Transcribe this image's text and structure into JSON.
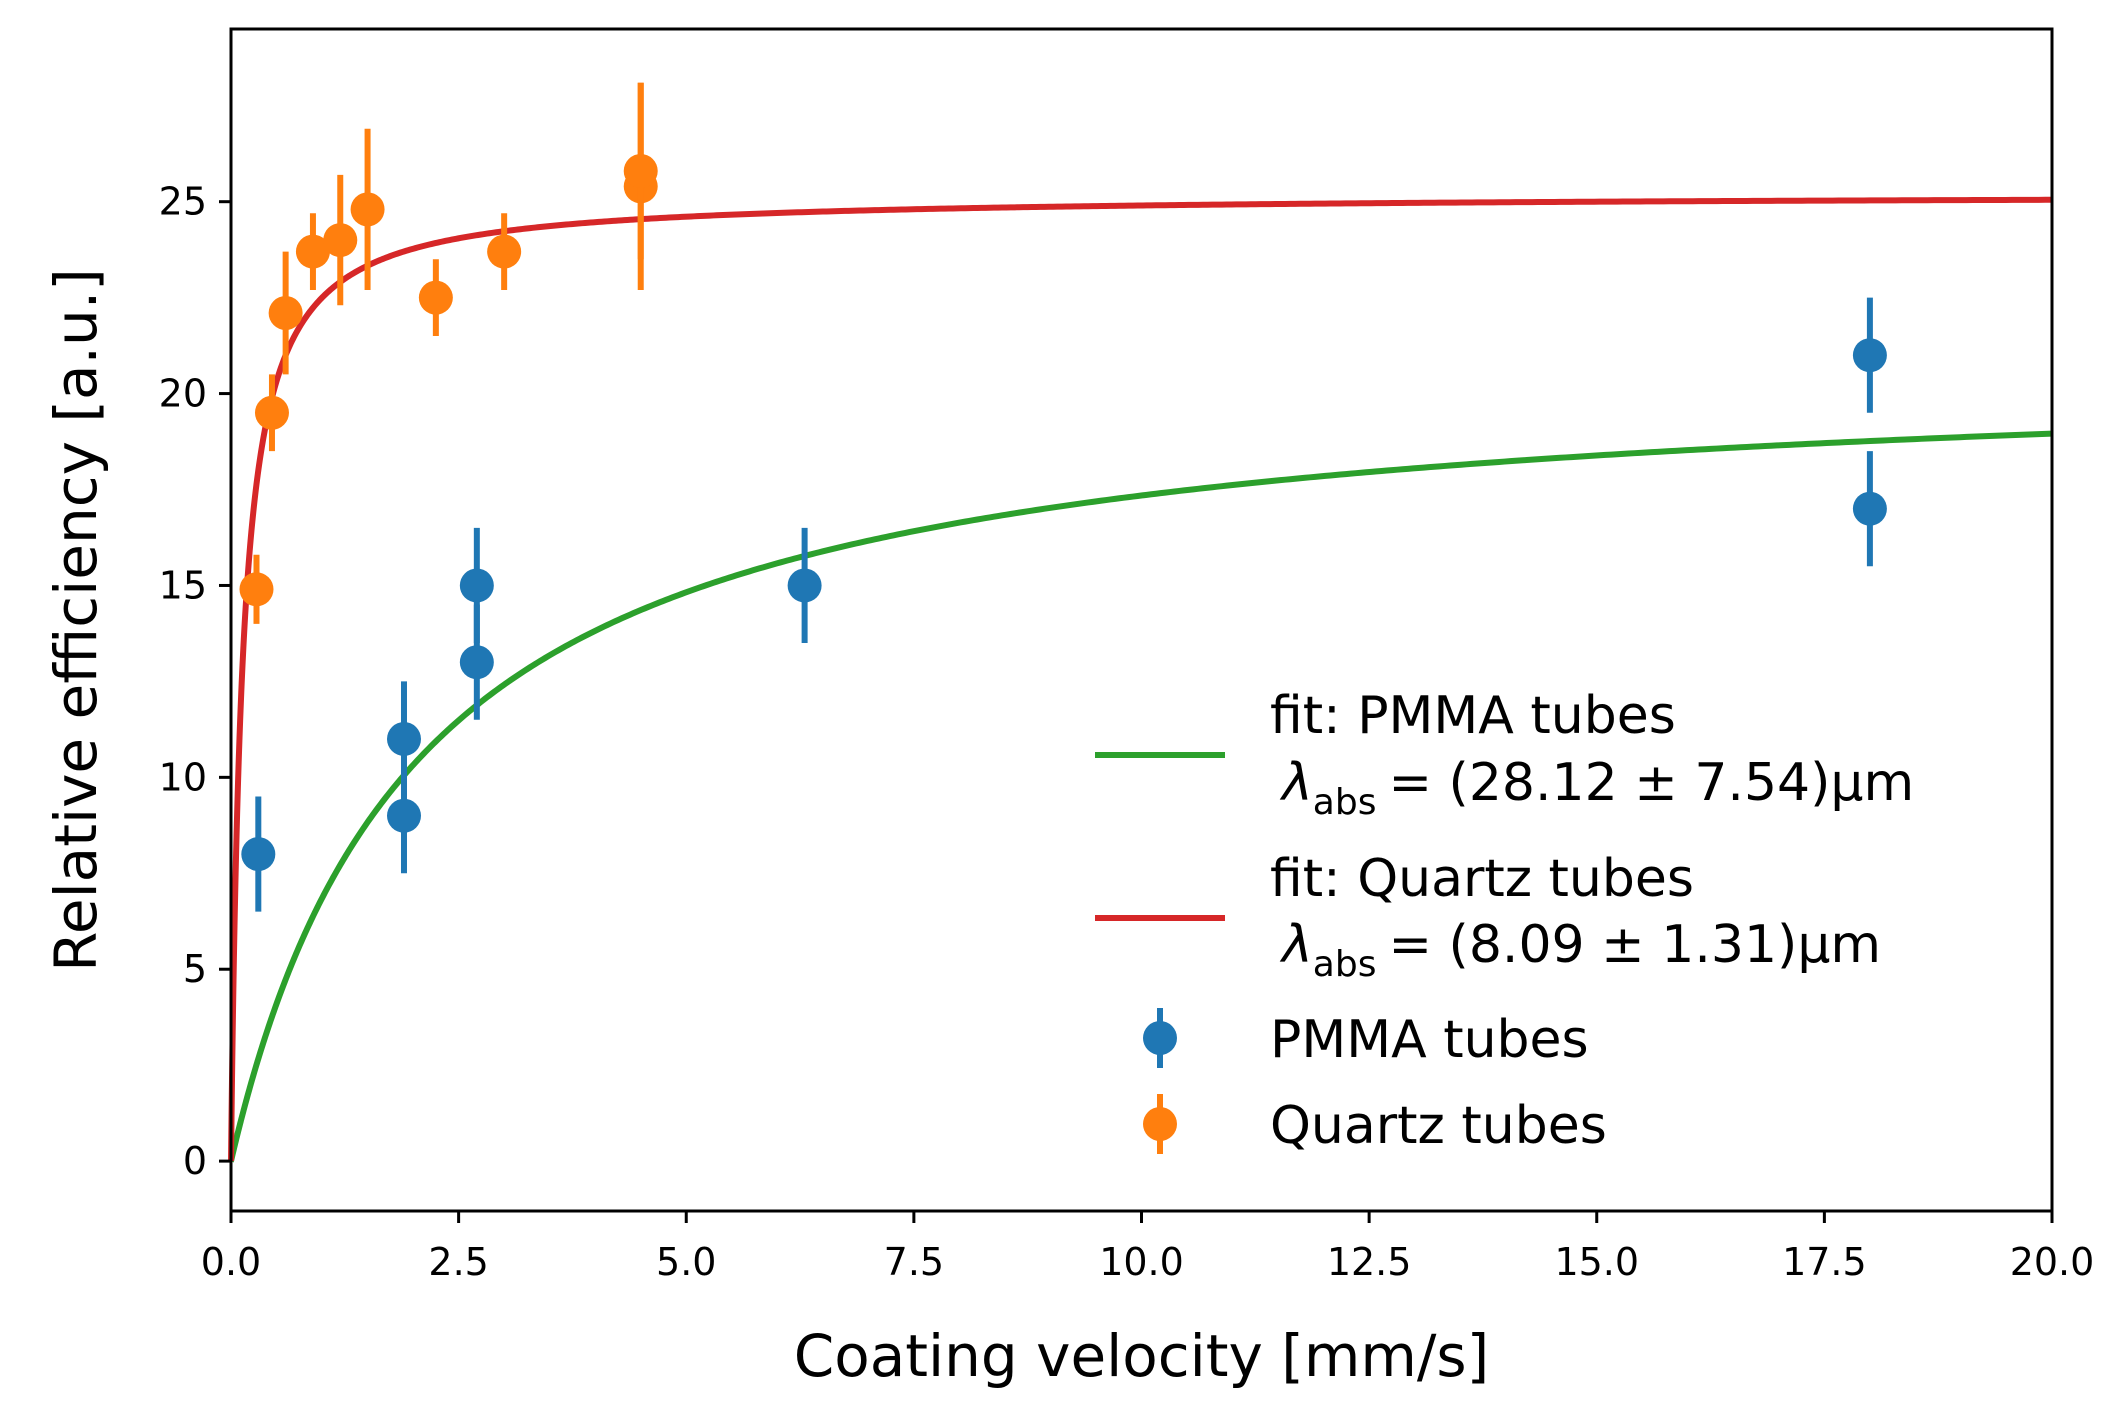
{
  "chart_data": {
    "type": "scatter",
    "xlabel": "Coating velocity [mm/s]",
    "ylabel": "Relative efficiency [a.u.]",
    "xlim": [
      0.0,
      20.0
    ],
    "ylim": [
      -1.3,
      29.5
    ],
    "x_ticks": [
      0.0,
      2.5,
      5.0,
      7.5,
      10.0,
      12.5,
      15.0,
      17.5,
      20.0
    ],
    "x_tick_labels": [
      "0.0",
      "2.5",
      "5.0",
      "7.5",
      "10.0",
      "12.5",
      "15.0",
      "17.5",
      "20.0"
    ],
    "y_ticks": [
      0,
      5,
      10,
      15,
      20,
      25
    ],
    "y_tick_labels": [
      "0",
      "5",
      "10",
      "15",
      "20",
      "25"
    ],
    "grid": false,
    "legend_position": "center-right",
    "series": [
      {
        "name": "PMMA tubes",
        "kind": "errorbar",
        "color": "#1f77b4",
        "points": [
          {
            "x": 0.3,
            "y": 8.0,
            "err": 1.5
          },
          {
            "x": 1.9,
            "y": 11.0,
            "err": 1.5
          },
          {
            "x": 1.9,
            "y": 9.0,
            "err": 1.5
          },
          {
            "x": 2.7,
            "y": 15.0,
            "err": 1.5
          },
          {
            "x": 2.7,
            "y": 13.0,
            "err": 1.5
          },
          {
            "x": 6.3,
            "y": 15.0,
            "err": 1.5
          },
          {
            "x": 18.0,
            "y": 21.0,
            "err": 1.5
          },
          {
            "x": 18.0,
            "y": 17.0,
            "err": 1.5
          }
        ]
      },
      {
        "name": "Quartz tubes",
        "kind": "errorbar",
        "color": "#ff7f0e",
        "points": [
          {
            "x": 0.28,
            "y": 14.9,
            "err": 0.9
          },
          {
            "x": 0.45,
            "y": 19.5,
            "err": 1.0
          },
          {
            "x": 0.6,
            "y": 22.1,
            "err": 1.6
          },
          {
            "x": 0.9,
            "y": 23.7,
            "err": 1.0
          },
          {
            "x": 1.2,
            "y": 24.0,
            "err": 1.7
          },
          {
            "x": 1.5,
            "y": 24.8,
            "err": 2.1
          },
          {
            "x": 2.25,
            "y": 22.5,
            "err": 1.0
          },
          {
            "x": 3.0,
            "y": 23.7,
            "err": 1.0
          },
          {
            "x": 4.5,
            "y": 25.4,
            "err": 2.7
          },
          {
            "x": 4.5,
            "y": 25.8,
            "err": 2.3
          }
        ]
      },
      {
        "name": "fit: PMMA tubes",
        "kind": "fit",
        "color": "#2ca02c",
        "model": "y = A * v / (v + v0)",
        "A": 20.9,
        "v0": 2.05
      },
      {
        "name": "fit: Quartz tubes",
        "kind": "fit",
        "color": "#d62728",
        "model": "y = A * v / (v + v0)",
        "A": 25.2,
        "v0": 0.12
      }
    ],
    "legend": [
      {
        "series": "fit: PMMA tubes",
        "line1": "fit: PMMA tubes",
        "lambda_symbol": "λ",
        "lambda_sub": "abs",
        "value": "= (28.12 ± 7.54)µm"
      },
      {
        "series": "fit: Quartz tubes",
        "line1": "fit: Quartz tubes",
        "lambda_symbol": "λ",
        "lambda_sub": "abs",
        "value": "= (8.09 ± 1.31)µm"
      },
      {
        "series": "PMMA tubes",
        "line1": "PMMA tubes"
      },
      {
        "series": "Quartz tubes",
        "line1": "Quartz tubes"
      }
    ]
  }
}
